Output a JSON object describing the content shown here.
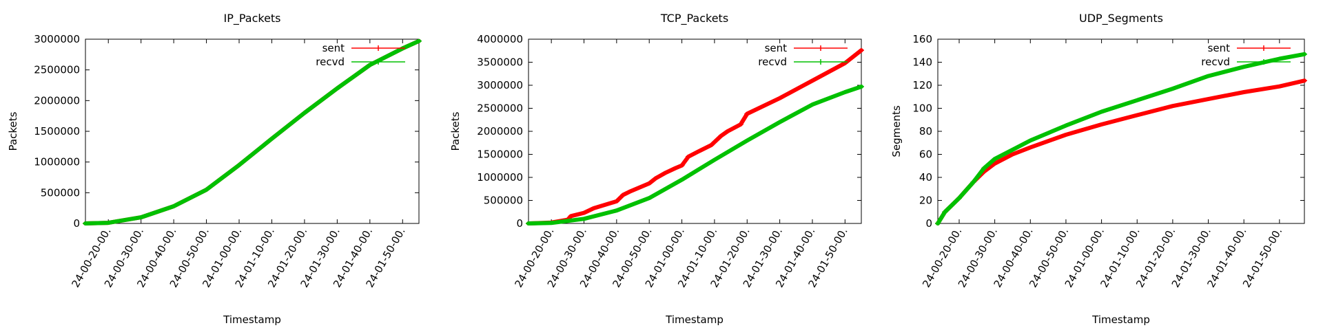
{
  "chart_data": [
    {
      "type": "line",
      "title": "IP_Packets",
      "xlabel": "Timestamp",
      "ylabel": "Packets",
      "ylim": [
        0,
        3000000
      ],
      "yticks": [
        0,
        500000,
        1000000,
        1500000,
        2000000,
        2500000,
        3000000
      ],
      "ytick_labels": [
        "0",
        "500000",
        "1000000",
        "1500000",
        "2000000",
        "2500000",
        "3000000"
      ],
      "xlim": [
        "24-00-13-00",
        "24-01-55-00"
      ],
      "xtick_labels": [
        "24-00-20-00.",
        "24-00-30-00.",
        "24-00-40-00.",
        "24-00-50-00.",
        "24-01-00-00.",
        "24-01-10-00.",
        "24-01-20-00.",
        "24-01-30-00.",
        "24-01-40-00.",
        "24-01-50-00."
      ],
      "xticks": [
        "24-00-20-00",
        "24-00-30-00",
        "24-00-40-00",
        "24-00-50-00",
        "24-01-00-00",
        "24-01-10-00",
        "24-01-20-00",
        "24-01-30-00",
        "24-01-40-00",
        "24-01-50-00"
      ],
      "legend": "top-right",
      "series": [
        {
          "name": "sent",
          "color": "#ff0000",
          "x": [
            "24-00-13-00",
            "24-00-20-00",
            "24-00-30-00",
            "24-00-40-00",
            "24-00-50-00",
            "24-01-00-00",
            "24-01-10-00",
            "24-01-20-00",
            "24-01-30-00",
            "24-01-40-00",
            "24-01-50-00",
            "24-01-55-00"
          ],
          "y": [
            0,
            10000,
            100000,
            280000,
            550000,
            950000,
            1380000,
            1800000,
            2200000,
            2580000,
            2850000,
            2970000
          ]
        },
        {
          "name": "recvd",
          "color": "#00c000",
          "x": [
            "24-00-13-00",
            "24-00-20-00",
            "24-00-30-00",
            "24-00-40-00",
            "24-00-50-00",
            "24-01-00-00",
            "24-01-10-00",
            "24-01-20-00",
            "24-01-30-00",
            "24-01-40-00",
            "24-01-50-00",
            "24-01-55-00"
          ],
          "y": [
            0,
            10000,
            100000,
            280000,
            550000,
            950000,
            1380000,
            1800000,
            2200000,
            2580000,
            2850000,
            2970000
          ]
        }
      ]
    },
    {
      "type": "line",
      "title": "TCP_Packets",
      "xlabel": "Timestamp",
      "ylabel": "Packets",
      "ylim": [
        0,
        4000000
      ],
      "yticks": [
        0,
        500000,
        1000000,
        1500000,
        2000000,
        2500000,
        3000000,
        3500000,
        4000000
      ],
      "ytick_labels": [
        "0",
        "500000",
        "1000000",
        "1500000",
        "2000000",
        "2500000",
        "3000000",
        "3500000",
        "4000000"
      ],
      "xlim": [
        "24-00-13-00",
        "24-01-55-00"
      ],
      "xtick_labels": [
        "24-00-20-00.",
        "24-00-30-00.",
        "24-00-40-00.",
        "24-00-50-00.",
        "24-01-00-00.",
        "24-01-10-00.",
        "24-01-20-00.",
        "24-01-30-00.",
        "24-01-40-00.",
        "24-01-50-00."
      ],
      "xticks": [
        "24-00-20-00",
        "24-00-30-00",
        "24-00-40-00",
        "24-00-50-00",
        "24-01-00-00",
        "24-01-10-00",
        "24-01-20-00",
        "24-01-30-00",
        "24-01-40-00",
        "24-01-50-00"
      ],
      "legend": "top-right",
      "series": [
        {
          "name": "sent",
          "color": "#ff0000",
          "x": [
            "24-00-13-00",
            "24-00-20-00",
            "24-00-25-00",
            "24-00-26-00",
            "24-00-30-00",
            "24-00-33-00",
            "24-00-40-00",
            "24-00-42-00",
            "24-00-44-00",
            "24-00-50-00",
            "24-00-52-00",
            "24-00-55-00",
            "24-00-58-00",
            "24-01-00-00",
            "24-01-02-00",
            "24-01-05-00",
            "24-01-09-00",
            "24-01-12-00",
            "24-01-14-00",
            "24-01-18-00",
            "24-01-20-00",
            "24-01-30-00",
            "24-01-40-00",
            "24-01-50-00",
            "24-01-55-00"
          ],
          "y": [
            0,
            20000,
            80000,
            160000,
            230000,
            330000,
            480000,
            620000,
            690000,
            870000,
            980000,
            1100000,
            1200000,
            1260000,
            1450000,
            1560000,
            1700000,
            1900000,
            2000000,
            2150000,
            2380000,
            2720000,
            3100000,
            3480000,
            3760000
          ]
        },
        {
          "name": "recvd",
          "color": "#00c000",
          "x": [
            "24-00-13-00",
            "24-00-20-00",
            "24-00-30-00",
            "24-00-40-00",
            "24-00-50-00",
            "24-01-00-00",
            "24-01-10-00",
            "24-01-20-00",
            "24-01-30-00",
            "24-01-40-00",
            "24-01-50-00",
            "24-01-55-00"
          ],
          "y": [
            0,
            10000,
            100000,
            280000,
            550000,
            950000,
            1380000,
            1800000,
            2200000,
            2580000,
            2850000,
            2970000
          ]
        }
      ]
    },
    {
      "type": "line",
      "title": "UDP_Segments",
      "xlabel": "Timestamp",
      "ylabel": "Segments",
      "ylim": [
        0,
        160
      ],
      "yticks": [
        0,
        20,
        40,
        60,
        80,
        100,
        120,
        140,
        160
      ],
      "ytick_labels": [
        "0",
        "20",
        "40",
        "60",
        "80",
        "100",
        "120",
        "140",
        "160"
      ],
      "xlim": [
        "24-00-14-00",
        "24-01-57-00"
      ],
      "xtick_labels": [
        "24-00-20-00.",
        "24-00-30-00.",
        "24-00-40-00.",
        "24-00-50-00.",
        "24-01-00-00.",
        "24-01-10-00.",
        "24-01-20-00.",
        "24-01-30-00.",
        "24-01-40-00.",
        "24-01-50-00."
      ],
      "xticks": [
        "24-00-20-00",
        "24-00-30-00",
        "24-00-40-00",
        "24-00-50-00",
        "24-01-00-00",
        "24-01-10-00",
        "24-01-20-00",
        "24-01-30-00",
        "24-01-40-00",
        "24-01-50-00"
      ],
      "legend": "top-right",
      "series": [
        {
          "name": "sent",
          "color": "#ff0000",
          "x": [
            "24-00-14-00",
            "24-00-16-00",
            "24-00-20-00",
            "24-00-24-00",
            "24-00-27-00",
            "24-00-30-00",
            "24-00-35-00",
            "24-00-40-00",
            "24-00-50-00",
            "24-01-00-00",
            "24-01-10-00",
            "24-01-20-00",
            "24-01-30-00",
            "24-01-40-00",
            "24-01-50-00",
            "24-01-57-00"
          ],
          "y": [
            0,
            10,
            22,
            36,
            45,
            52,
            60,
            66,
            77,
            86,
            94,
            102,
            108,
            114,
            119,
            124
          ]
        },
        {
          "name": "recvd",
          "color": "#00c000",
          "x": [
            "24-00-14-00",
            "24-00-16-00",
            "24-00-20-00",
            "24-00-24-00",
            "24-00-27-00",
            "24-00-30-00",
            "24-00-35-00",
            "24-00-40-00",
            "24-00-50-00",
            "24-01-00-00",
            "24-01-10-00",
            "24-01-20-00",
            "24-01-30-00",
            "24-01-40-00",
            "24-01-50-00",
            "24-01-57-00"
          ],
          "y": [
            0,
            10,
            22,
            36,
            48,
            56,
            64,
            72,
            85,
            97,
            107,
            117,
            128,
            136,
            143,
            147
          ]
        }
      ]
    }
  ]
}
